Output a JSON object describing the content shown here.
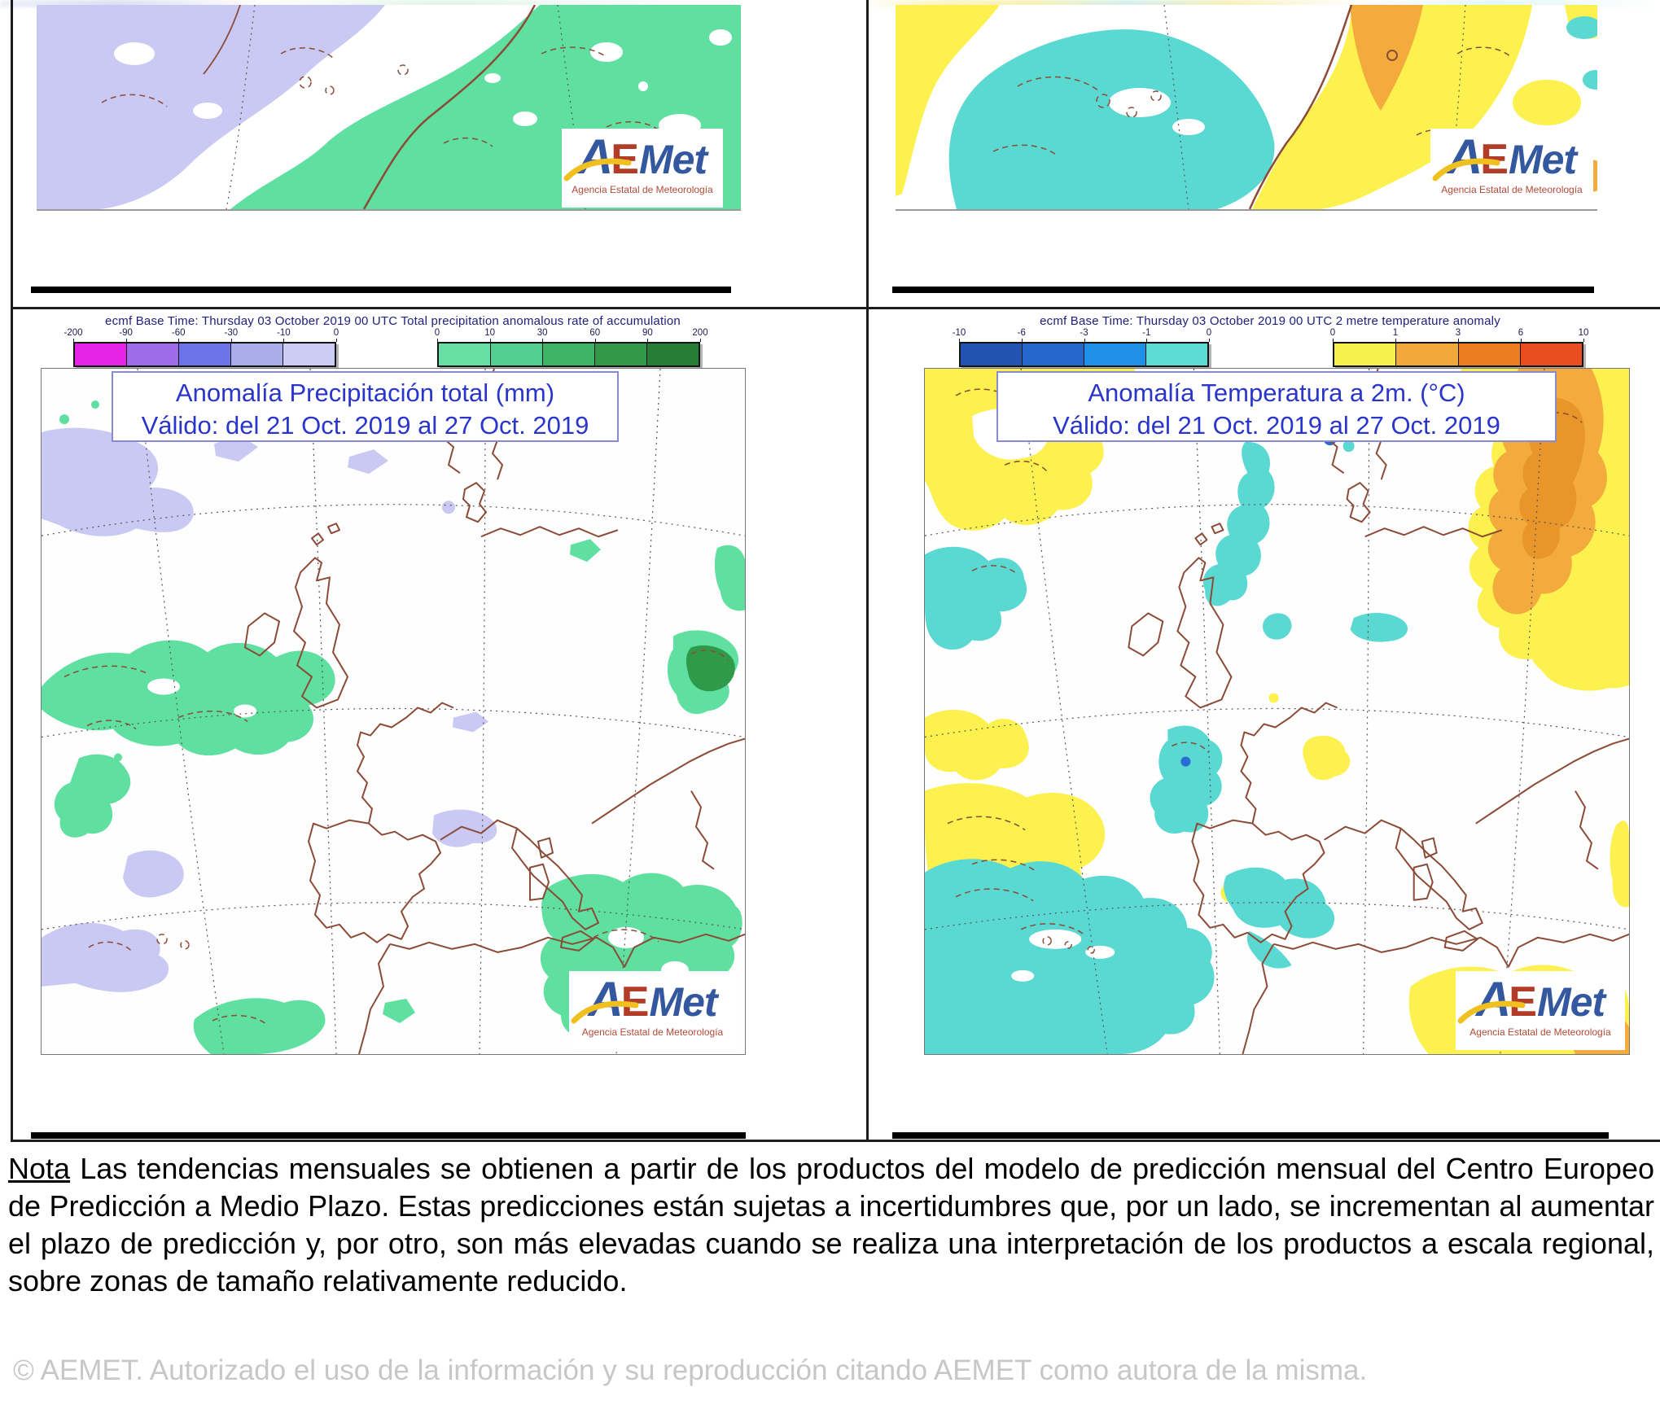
{
  "logo": {
    "a": "A",
    "e": "E",
    "met": "Met",
    "subtitle": "Agencia Estatal de Meteorología"
  },
  "panels": {
    "precip": {
      "colorbar_header": "ecmf  Base Time: Thursday 03 October 2019 00 UTC Total precipitation anomalous rate of accumulation",
      "title": "Anomalía Precipitación total (mm)",
      "valid": "Válido: del 21 Oct. 2019 al 27 Oct. 2019",
      "colorbar": {
        "negative": {
          "ticks": [
            "-200",
            "-90",
            "-60",
            "-30",
            "-10",
            "0"
          ],
          "colors": [
            "#e623e6",
            "#9e6ce6",
            "#6d74ea",
            "#a9aeea",
            "#ccccf5"
          ]
        },
        "positive": {
          "ticks": [
            "0",
            "10",
            "30",
            "60",
            "90",
            "200"
          ],
          "colors": [
            "#66e0a4",
            "#52cf90",
            "#3fb464",
            "#33984a",
            "#257d36"
          ]
        }
      }
    },
    "temp": {
      "colorbar_header": "ecmf  Base Time: Thursday 03 October 2019 00 UTC 2 metre temperature anomaly",
      "title": "Anomalía Temperatura a 2m. (°C)",
      "valid": "Válido: del 21 Oct. 2019 al 27 Oct. 2019",
      "colorbar": {
        "negative": {
          "ticks": [
            "-10",
            "-6",
            "-3",
            "-1",
            "0"
          ],
          "colors": [
            "#2252b2",
            "#2767cb",
            "#1e90e8",
            "#5cdcd4"
          ]
        },
        "positive": {
          "ticks": [
            "0",
            "1",
            "3",
            "6",
            "10"
          ],
          "colors": [
            "#f8f04c",
            "#f2a93c",
            "#ee7d22",
            "#e94e20"
          ]
        }
      }
    }
  },
  "note": {
    "label": "Nota",
    "text": " Las tendencias mensuales se obtienen a partir de los productos del modelo de predicción mensual del Centro Europeo de Predicción a Medio Plazo. Estas predicciones están sujetas a incertidumbres que, por un lado, se incrementan al aumentar el plazo de predicción y, por otro, son más elevadas cuando se realiza una interpretación de los productos a escala regional, sobre zonas de tamaño relativamente reducido."
  },
  "footer": {
    "text": "© AEMET. Autorizado el uso de la información y su reproducción citando AEMET como autora de la misma."
  },
  "map_colors": {
    "lavender": "#c9c9f3",
    "green": "#5fe0a1",
    "dark_green": "#2f9b4a",
    "cyan": "#5ad8d2",
    "yellow": "#fcf14e",
    "orange": "#f2ab3c",
    "dark_orange": "#e8952a",
    "blue_spot": "#2a6cd4",
    "coast": "#8b4b37",
    "title_blue": "#2a35cc"
  }
}
